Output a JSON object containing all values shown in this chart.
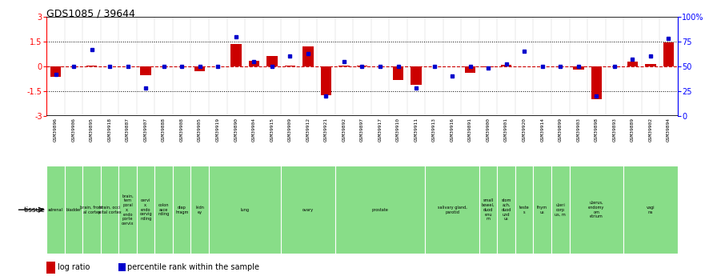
{
  "title": "GDS1085 / 39644",
  "samples": [
    "GSM39896",
    "GSM39906",
    "GSM39895",
    "GSM39918",
    "GSM39887",
    "GSM39907",
    "GSM39888",
    "GSM39908",
    "GSM39905",
    "GSM39919",
    "GSM39890",
    "GSM39904",
    "GSM39915",
    "GSM39909",
    "GSM39912",
    "GSM39921",
    "GSM39892",
    "GSM39897",
    "GSM39917",
    "GSM39910",
    "GSM39911",
    "GSM39913",
    "GSM39916",
    "GSM39891",
    "GSM39900",
    "GSM39901",
    "GSM39920",
    "GSM39914",
    "GSM39899",
    "GSM39903",
    "GSM39898",
    "GSM39893",
    "GSM39889",
    "GSM39902",
    "GSM39894"
  ],
  "log_ratio": [
    -0.65,
    0.0,
    0.05,
    0.0,
    0.0,
    -0.55,
    0.0,
    0.0,
    -0.3,
    0.0,
    1.35,
    0.35,
    0.6,
    0.05,
    1.2,
    -1.75,
    0.05,
    0.05,
    0.0,
    -0.85,
    -1.1,
    0.0,
    0.0,
    -0.4,
    -0.05,
    0.1,
    0.0,
    0.0,
    0.0,
    -0.2,
    -2.0,
    0.0,
    0.3,
    0.15,
    1.45
  ],
  "percentile": [
    42,
    50,
    67,
    50,
    50,
    28,
    50,
    50,
    50,
    50,
    80,
    55,
    50,
    60,
    63,
    20,
    55,
    50,
    50,
    50,
    28,
    50,
    40,
    50,
    48,
    52,
    65,
    50,
    50,
    50,
    20,
    50,
    57,
    60,
    78
  ],
  "tissue_groups": [
    {
      "label": "adrenal",
      "start": 0,
      "end": 1
    },
    {
      "label": "bladder",
      "start": 1,
      "end": 2
    },
    {
      "label": "brain, front\nal cortex",
      "start": 2,
      "end": 3
    },
    {
      "label": "brain, occi\npital cortex",
      "start": 3,
      "end": 4
    },
    {
      "label": "brain,\ntem\nporal\nx,\nendo\nporte\ncervix",
      "start": 4,
      "end": 5
    },
    {
      "label": "cervi\nx,\nendo\ncervig\nnding",
      "start": 5,
      "end": 6
    },
    {
      "label": "colon\nasce\nnding",
      "start": 6,
      "end": 7
    },
    {
      "label": "diap\nhragm",
      "start": 7,
      "end": 8
    },
    {
      "label": "kidn\ney",
      "start": 8,
      "end": 9
    },
    {
      "label": "lung",
      "start": 9,
      "end": 13
    },
    {
      "label": "ovary",
      "start": 13,
      "end": 16
    },
    {
      "label": "prostate",
      "start": 16,
      "end": 21
    },
    {
      "label": "salivary gland,\nparotid",
      "start": 21,
      "end": 24
    },
    {
      "label": "small\nbowel,\nduod\nenu\nm",
      "start": 24,
      "end": 25
    },
    {
      "label": "stom\nach,\nduod\nund\nus",
      "start": 25,
      "end": 26
    },
    {
      "label": "teste\ns",
      "start": 26,
      "end": 27
    },
    {
      "label": "thym\nus",
      "start": 27,
      "end": 28
    },
    {
      "label": "uteri\ncorp\nus, m",
      "start": 28,
      "end": 29
    },
    {
      "label": "uterus,\nendomy\nom\netrium",
      "start": 29,
      "end": 32
    },
    {
      "label": "vagi\nna",
      "start": 32,
      "end": 35
    }
  ],
  "bar_color": "#cc0000",
  "dot_color": "#0000cc",
  "plot_bg_color": "#ffffff",
  "sample_bg_color": "#c8c8c8",
  "tissue_color": "#88dd88"
}
